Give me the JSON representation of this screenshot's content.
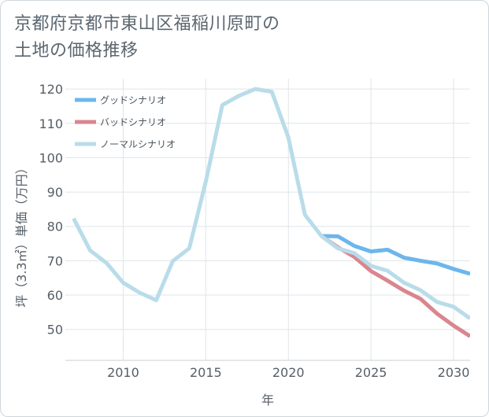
{
  "title_lines": [
    "京都府京都市東山区福稲川原町の",
    "土地の価格推移"
  ],
  "chart_data": {
    "type": "line",
    "xlabel": "年",
    "ylabel": "坪（3.3㎡）単価（万円）",
    "xlim": [
      2006.5,
      2031
    ],
    "ylim": [
      41,
      123
    ],
    "x_ticks": [
      2010,
      2015,
      2020,
      2025,
      2030
    ],
    "y_ticks": [
      50,
      60,
      70,
      80,
      90,
      100,
      110,
      120
    ],
    "grid": true,
    "legend_position": "top-left",
    "series": [
      {
        "name": "グッドシナリオ",
        "color": "#6cb6ec",
        "x": [
          2022,
          2023,
          2024,
          2025,
          2026,
          2027,
          2028,
          2029,
          2030,
          2031
        ],
        "values": [
          77.2,
          77.1,
          74.3,
          72.7,
          73.2,
          70.9,
          70.0,
          69.2,
          67.6,
          66.2
        ]
      },
      {
        "name": "バッドシナリオ",
        "color": "#d9868f",
        "x": [
          2022,
          2023,
          2024,
          2025,
          2026,
          2027,
          2028,
          2029,
          2030,
          2031
        ],
        "values": [
          77.2,
          73.9,
          71.1,
          67.0,
          64.2,
          61.3,
          58.9,
          54.6,
          51.1,
          48.0
        ]
      },
      {
        "name": "ノーマルシナリオ",
        "color": "#b9dce9",
        "x": [
          2007,
          2008,
          2009,
          2010,
          2011,
          2012,
          2013,
          2014,
          2015,
          2016,
          2017,
          2018,
          2019,
          2020,
          2021,
          2022,
          2023,
          2024,
          2025,
          2026,
          2027,
          2028,
          2029,
          2030,
          2031
        ],
        "values": [
          82.3,
          73.0,
          69.3,
          63.6,
          60.7,
          58.5,
          69.9,
          73.6,
          93.0,
          115.3,
          118.0,
          120.0,
          119.2,
          105.9,
          83.4,
          77.2,
          73.6,
          72.2,
          68.5,
          67.1,
          63.6,
          61.4,
          58.0,
          56.6,
          53.2
        ]
      }
    ]
  }
}
